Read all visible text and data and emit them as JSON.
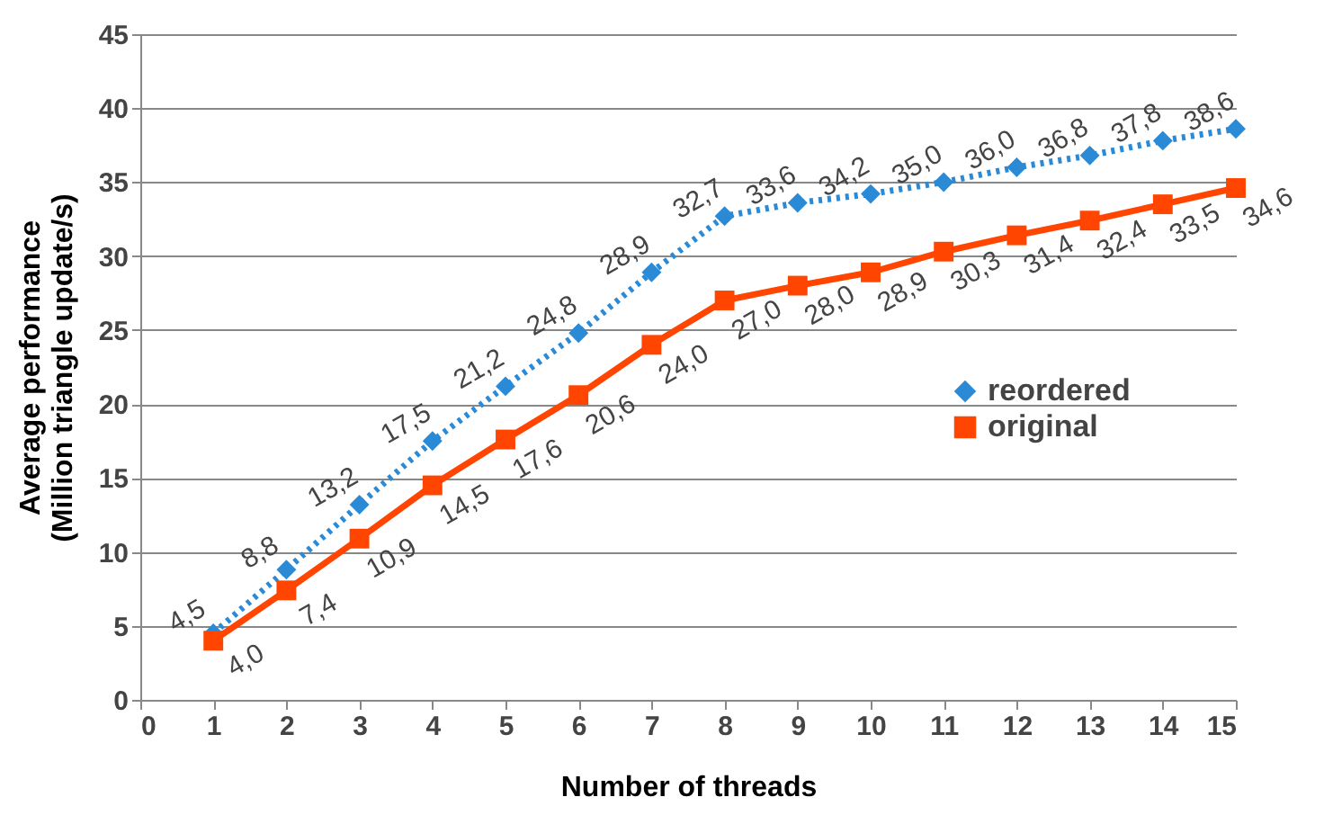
{
  "chart_data": {
    "type": "line",
    "xlabel": "Number of threads",
    "ylabel": "Average performance\n(Million triangle update/s)",
    "x": [
      1,
      2,
      3,
      4,
      5,
      6,
      7,
      8,
      9,
      10,
      11,
      12,
      13,
      14,
      15
    ],
    "xlim": [
      0,
      15
    ],
    "xticks": [
      0,
      1,
      2,
      3,
      4,
      5,
      6,
      7,
      8,
      9,
      10,
      11,
      12,
      13,
      14,
      15
    ],
    "ylim": [
      0,
      45
    ],
    "yticks": [
      0,
      5,
      10,
      15,
      20,
      25,
      30,
      35,
      40,
      45
    ],
    "grid": "y",
    "legend": "right",
    "series": [
      {
        "name": "reordered",
        "color": "#2a8ad6",
        "marker": "diamond",
        "line_style": "dotted",
        "values": [
          4.5,
          8.8,
          13.2,
          17.5,
          21.2,
          24.8,
          28.9,
          32.7,
          33.6,
          34.2,
          35.0,
          36.0,
          36.8,
          37.8,
          38.6
        ],
        "value_labels": [
          "4,5",
          "8,8",
          "13,2",
          "17,5",
          "21,2",
          "24,8",
          "28,9",
          "32,7",
          "33,6",
          "34,2",
          "35,0",
          "36,0",
          "36,8",
          "37,8",
          "38,6"
        ]
      },
      {
        "name": "original",
        "color": "#ff4500",
        "marker": "square",
        "line_style": "solid",
        "values": [
          4.0,
          7.4,
          10.9,
          14.5,
          17.6,
          20.6,
          24.0,
          27.0,
          28.0,
          28.9,
          30.3,
          31.4,
          32.4,
          33.5,
          34.6
        ],
        "value_labels": [
          "4,0",
          "7,4",
          "10,9",
          "14,5",
          "17,6",
          "20,6",
          "24,0",
          "27,0",
          "28,0",
          "28,9",
          "30,3",
          "31,4",
          "32,4",
          "33,5",
          "34,6"
        ]
      }
    ]
  }
}
